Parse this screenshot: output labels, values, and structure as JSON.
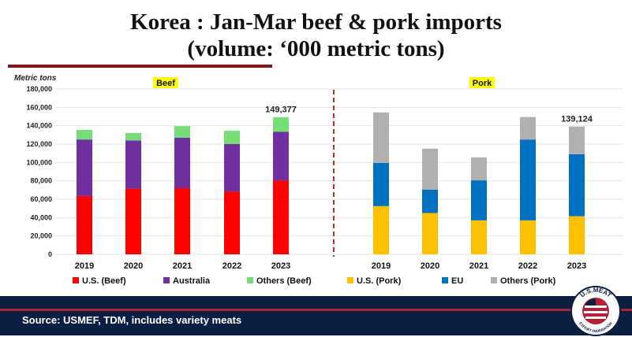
{
  "title_line1": "Korea : Jan-Mar beef  & pork imports",
  "title_line2": "(volume: ‘000 metric tons)",
  "source": "Source: USMEF, TDM, includes variety meats",
  "logo": {
    "text_top": "U.S.MEAT",
    "text_bottom": "EXPORT FEDERATION"
  },
  "chart_data": [
    {
      "type": "bar",
      "stacked": true,
      "panel": "Beef",
      "ylabel": "Metric tons",
      "ylim": [
        0,
        180000
      ],
      "yticks": [
        "0",
        "20,000",
        "40,000",
        "60,000",
        "80,000",
        "100,000",
        "120,000",
        "140,000",
        "160,000",
        "180,000"
      ],
      "categories": [
        "2019",
        "2020",
        "2021",
        "2022",
        "2023"
      ],
      "series": [
        {
          "name": "U.S. (Beef)",
          "color": "#ff0000",
          "values": [
            63500,
            71500,
            72000,
            68500,
            80500
          ]
        },
        {
          "name": "Australia",
          "color": "#7030a0",
          "values": [
            61500,
            52500,
            55000,
            51500,
            53000
          ]
        },
        {
          "name": "Others (Beef)",
          "color": "#77dd77",
          "values": [
            10500,
            8000,
            12500,
            14500,
            15877
          ]
        }
      ],
      "annotations": [
        {
          "category": "2023",
          "text": "149,377"
        }
      ]
    },
    {
      "type": "bar",
      "stacked": true,
      "panel": "Pork",
      "ylim": [
        0,
        180000
      ],
      "categories": [
        "2019",
        "2020",
        "2021",
        "2022",
        "2023"
      ],
      "series": [
        {
          "name": "U.S. (Pork)",
          "color": "#ffc000",
          "values": [
            52500,
            45000,
            37000,
            37000,
            41500
          ]
        },
        {
          "name": "EU",
          "color": "#0070c0",
          "values": [
            47000,
            25500,
            43500,
            88000,
            67500
          ]
        },
        {
          "name": "Others (Pork)",
          "color": "#b0b0b0",
          "values": [
            55000,
            44500,
            25000,
            24500,
            30124
          ]
        }
      ],
      "annotations": [
        {
          "category": "2023",
          "text": "139,124"
        }
      ]
    }
  ]
}
